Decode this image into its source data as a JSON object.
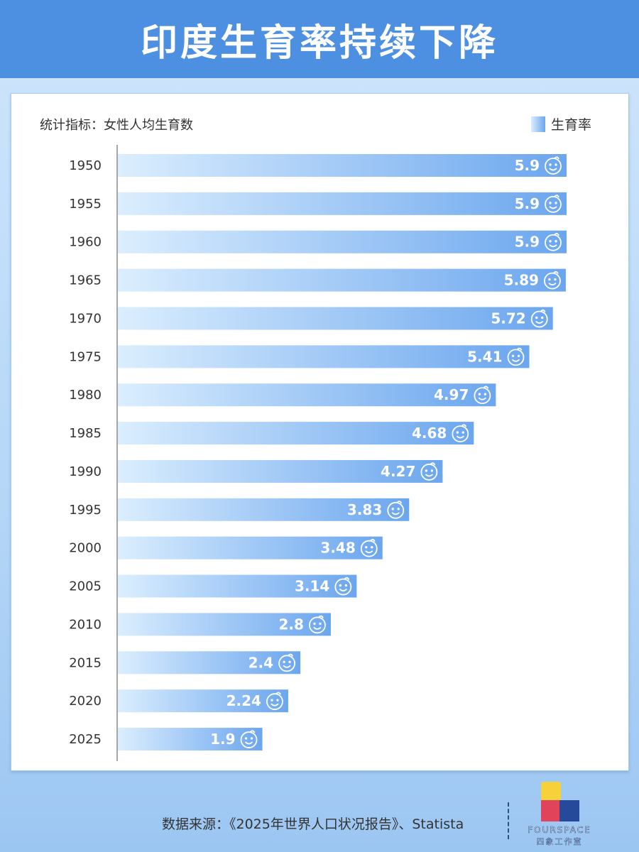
{
  "header": {
    "title": "印度生育率持续下降"
  },
  "colors": {
    "header": "#4d8fe0",
    "bar_start": "#dbeefe",
    "bar_end": "#6ba6ee"
  },
  "logo": {
    "text_en": "FOURSPACE",
    "text_cn": "四象工作室"
  },
  "footer": {
    "source": "数据来源：《2025年世界人口状况报告》、Statista"
  },
  "chart_data": {
    "type": "bar",
    "orientation": "horizontal",
    "subtitle": "统计指标：女性人均生育数",
    "legend": {
      "label": "生育率",
      "position": "top-right"
    },
    "categories": [
      "1950",
      "1955",
      "1960",
      "1965",
      "1970",
      "1975",
      "1980",
      "1985",
      "1990",
      "1995",
      "2000",
      "2005",
      "2010",
      "2015",
      "2020",
      "2025"
    ],
    "series": [
      {
        "name": "生育率",
        "values": [
          5.9,
          5.9,
          5.9,
          5.89,
          5.72,
          5.41,
          4.97,
          4.68,
          4.27,
          3.83,
          3.48,
          3.14,
          2.8,
          2.4,
          2.24,
          1.9
        ],
        "labels": [
          "5.9",
          "5.9",
          "5.9",
          "5.89",
          "5.72",
          "5.41",
          "4.97",
          "4.68",
          "4.27",
          "3.83",
          "3.48",
          "3.14",
          "2.8",
          "2.4",
          "2.24",
          "1.9"
        ]
      }
    ],
    "xlim": [
      0,
      5.9
    ],
    "grid": false,
    "label_icon": "baby-face-icon"
  }
}
